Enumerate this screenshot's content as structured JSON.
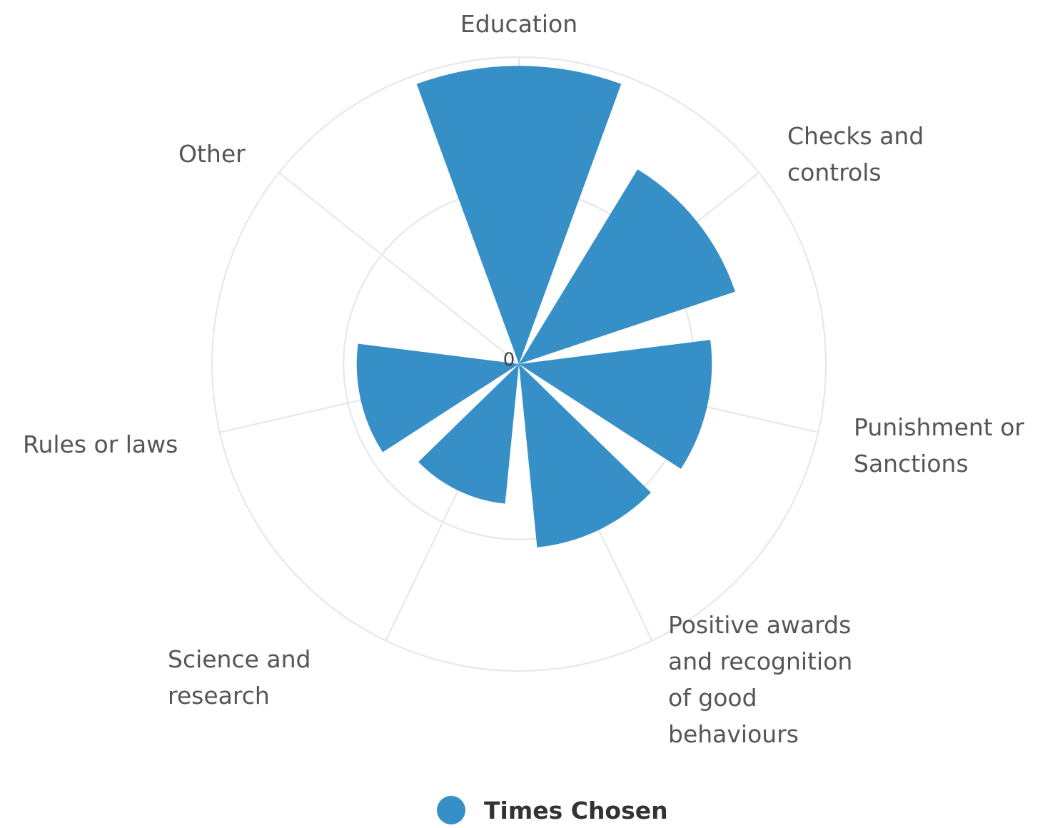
{
  "chart_data": {
    "type": "polar-column",
    "categories": [
      "Education",
      "Checks and controls",
      "Punishment or Sanctions",
      "Positive awards and recognition of good behaviours",
      "Science and research",
      "Rules or laws",
      "Other"
    ],
    "series": [
      {
        "name": "Times Chosen",
        "color": "#368fc7",
        "values": [
          34,
          26,
          22,
          21,
          16,
          18.5,
          0
        ]
      }
    ],
    "ylim": [
      0,
      35
    ],
    "yticks": [
      0,
      20
    ],
    "ytick_labels": [
      0
    ],
    "grid": true,
    "legend": "bottom"
  }
}
